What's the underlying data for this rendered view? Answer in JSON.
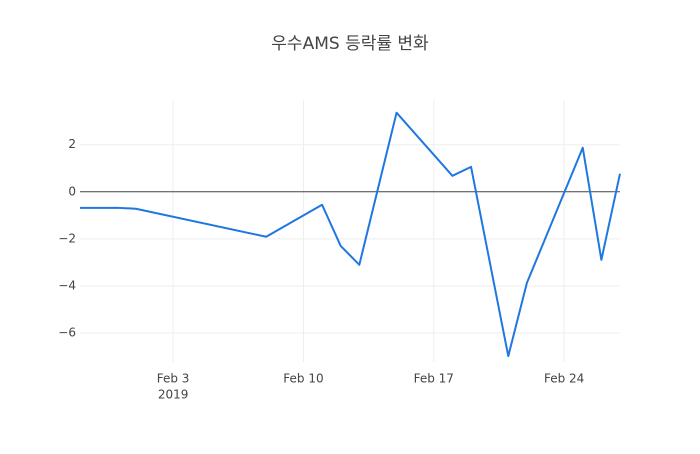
{
  "chart_data": {
    "type": "line",
    "title": "우수AMS 등락률 변화",
    "x": [
      "2019-01-29",
      "2019-01-31",
      "2019-02-01",
      "2019-02-08",
      "2019-02-11",
      "2019-02-12",
      "2019-02-13",
      "2019-02-15",
      "2019-02-18",
      "2019-02-19",
      "2019-02-21",
      "2019-02-22",
      "2019-02-25",
      "2019-02-26",
      "2019-02-27"
    ],
    "series": [
      {
        "name": "등락률",
        "color": "#1f77e0",
        "values": [
          -0.68,
          -0.68,
          -0.72,
          -1.91,
          -0.55,
          -2.3,
          -3.1,
          3.36,
          0.68,
          1.06,
          -6.98,
          -3.87,
          1.87,
          -2.89,
          0.77
        ]
      }
    ],
    "xlim": [
      "2019-01-29",
      "2019-02-27"
    ],
    "xticks": [
      {
        "value": "2019-02-03",
        "label": "Feb 3"
      },
      {
        "value": "2019-02-10",
        "label": "Feb 10"
      },
      {
        "value": "2019-02-17",
        "label": "Feb 17"
      },
      {
        "value": "2019-02-24",
        "label": "Feb 24"
      }
    ],
    "xtick_year": "2019",
    "ylim": [
      -7.23,
      3.9
    ],
    "yticks": [
      {
        "value": -6,
        "label": "−6"
      },
      {
        "value": -4,
        "label": "−4"
      },
      {
        "value": -2,
        "label": "−2"
      },
      0,
      2
    ],
    "grid": true,
    "zeroline": true
  }
}
